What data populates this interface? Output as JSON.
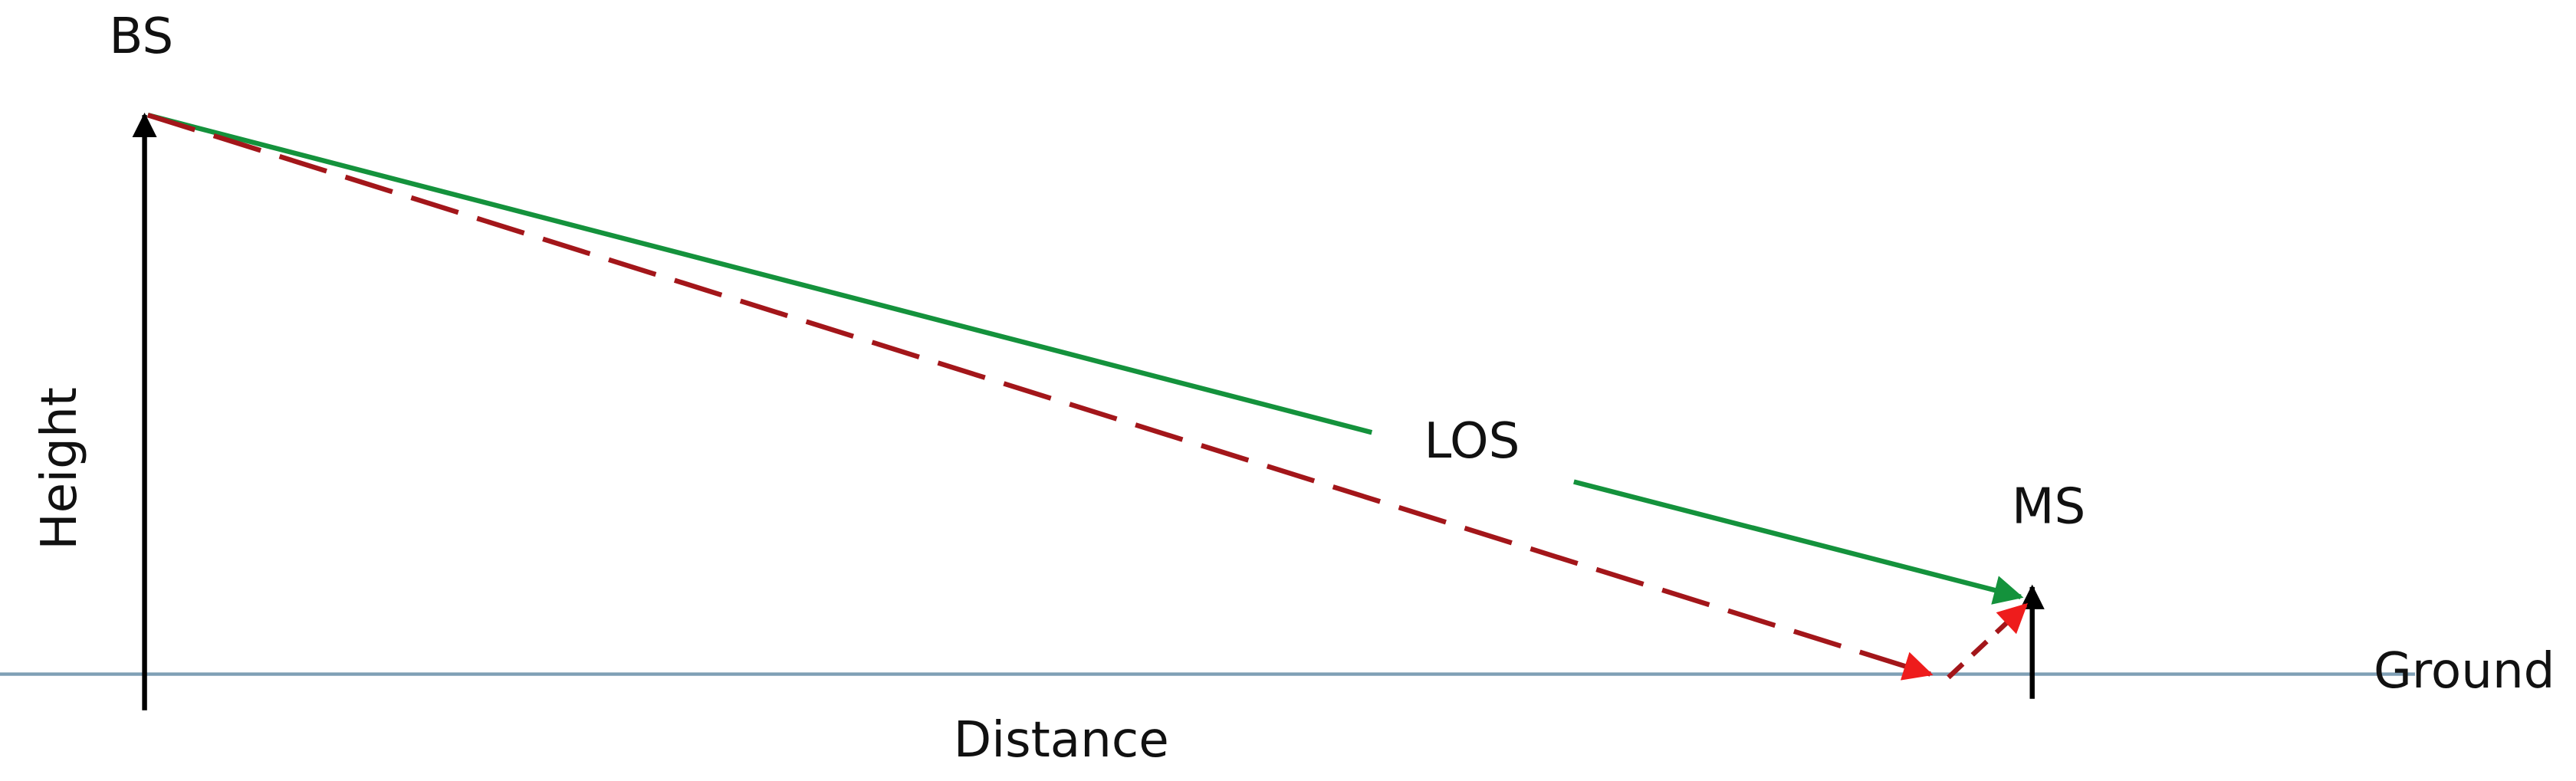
{
  "labels": {
    "base_station": "BS",
    "height_axis": "Height",
    "line_of_sight": "LOS",
    "mobile_station": "MS",
    "ground": "Ground",
    "distance_axis": "Distance"
  }
}
